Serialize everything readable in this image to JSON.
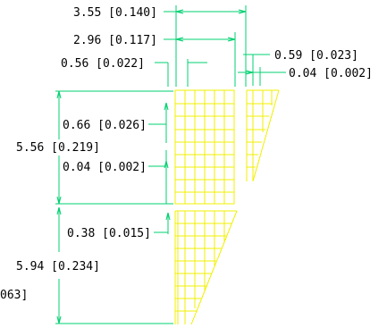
{
  "colors": {
    "dimension_line": "#00d070",
    "part_outline": "#f0f000",
    "text": "#000000",
    "background": "#ffffff"
  },
  "dimensions": {
    "overall_width": "3.55 [0.140]",
    "inner_width": "2.96 [0.117]",
    "left_offset": "0.56 [0.022]",
    "side_gap": "0.59 [0.023]",
    "side_thin": "0.04 [0.002]",
    "cell_pitch": "0.66 [0.026]",
    "upper_height": "5.56 [0.219]",
    "cell_gap": "0.04 [0.002]",
    "lower_offset": "0.38 [0.015]",
    "lower_height": "5.94 [0.234]",
    "clipped_left": "063]"
  }
}
